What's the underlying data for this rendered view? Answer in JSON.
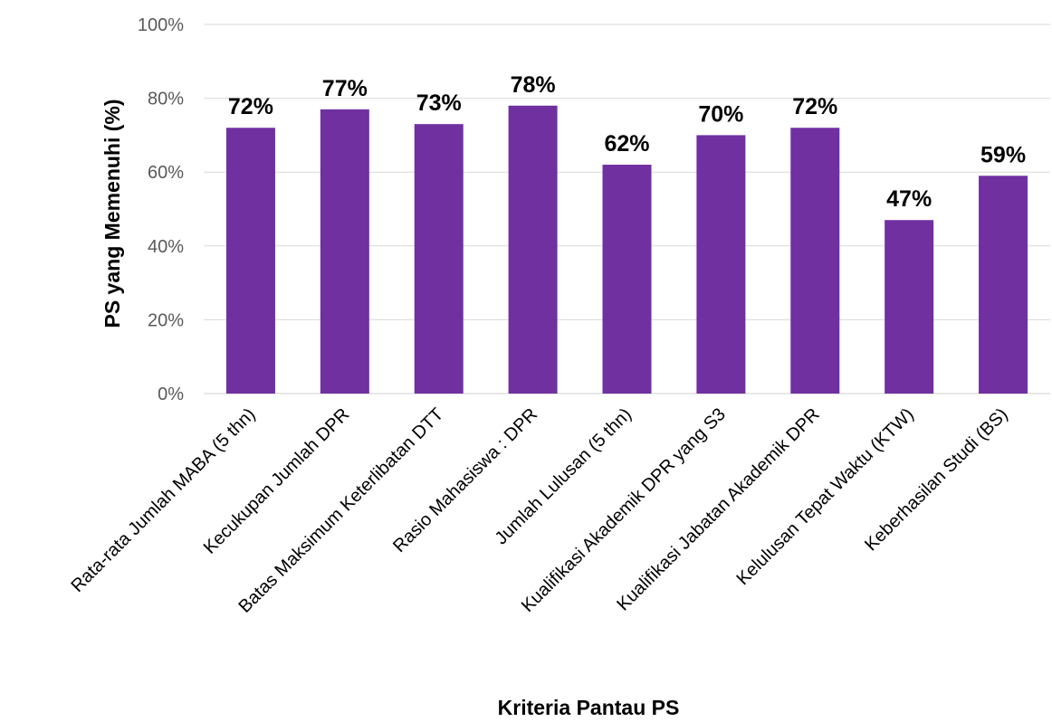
{
  "chart_data": {
    "type": "bar",
    "title": "",
    "xlabel": "Kriteria Pantau PS",
    "ylabel": "PS yang Memenuhi (%)",
    "ylim": [
      0,
      100
    ],
    "yticks": [
      "0%",
      "20%",
      "40%",
      "60%",
      "80%",
      "100%"
    ],
    "ytick_values": [
      0,
      20,
      40,
      60,
      80,
      100
    ],
    "grid": true,
    "legend": "none",
    "bar_color": "#7030a0",
    "categories": [
      "Rata-rata Jumlah MABA (5 thn)",
      "Kecukupan Jumlah DPR",
      "Batas Maksimum Keterlibatan DTT",
      "Rasio Mahasiswa : DPR",
      "Jumlah Lulusan (5 thn)",
      "Kualifikasi Akademik DPR yang S3",
      "Kualifikasi Jabatan Akademik DPR",
      "Kelulusan Tepat Waktu (KTW)",
      "Keberhasilan Studi (BS)"
    ],
    "values": [
      72,
      77,
      73,
      78,
      62,
      70,
      72,
      47,
      59
    ],
    "data_labels": [
      "72%",
      "77%",
      "73%",
      "78%",
      "62%",
      "70%",
      "72%",
      "47%",
      "59%"
    ]
  }
}
